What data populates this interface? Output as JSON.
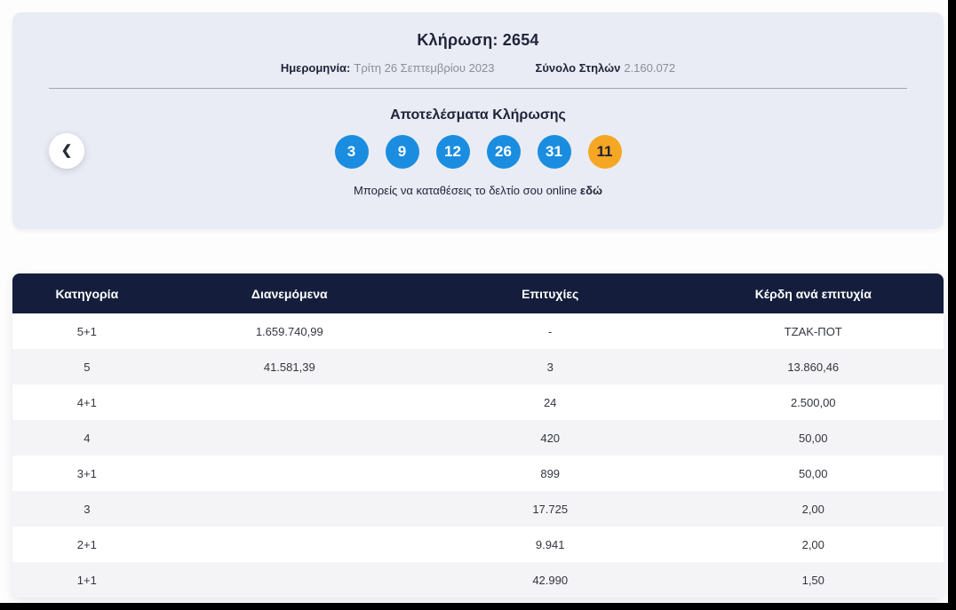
{
  "hero": {
    "draw_title": "Κλήρωση: 2654",
    "date_label": "Ημερομηνία:",
    "date_value": "Τρίτη 26 Σεπτεμβρίου 2023",
    "columns_label": "Σύνολο Στηλών",
    "columns_value": "2.160.072",
    "results_title": "Αποτελέσματα Κλήρωσης",
    "numbers": [
      {
        "value": "3",
        "type": "main"
      },
      {
        "value": "9",
        "type": "main"
      },
      {
        "value": "12",
        "type": "main"
      },
      {
        "value": "26",
        "type": "main"
      },
      {
        "value": "31",
        "type": "main"
      },
      {
        "value": "11",
        "type": "bonus"
      }
    ],
    "note_text": "Μπορείς να καταθέσεις το δελτίο σου online",
    "note_link": "εδώ",
    "prev_button_glyph": "❮"
  },
  "table": {
    "headers": [
      "Κατηγορία",
      "Διανεμόμενα",
      "Επιτυχίες",
      "Κέρδη ανά επιτυχία"
    ],
    "rows": [
      [
        "5+1",
        "1.659.740,99",
        "-",
        "ΤΖΑΚ-ΠΟΤ"
      ],
      [
        "5",
        "41.581,39",
        "3",
        "13.860,46"
      ],
      [
        "4+1",
        "",
        "24",
        "2.500,00"
      ],
      [
        "4",
        "",
        "420",
        "50,00"
      ],
      [
        "3+1",
        "",
        "899",
        "50,00"
      ],
      [
        "3",
        "",
        "17.725",
        "2,00"
      ],
      [
        "2+1",
        "",
        "9.941",
        "2,00"
      ],
      [
        "1+1",
        "",
        "42.990",
        "1,50"
      ]
    ]
  },
  "colors": {
    "main_ball": "#1b8de0",
    "bonus_ball": "#f5a623",
    "header_bg": "#141e3c",
    "card_bg": "#e9ecf4"
  }
}
